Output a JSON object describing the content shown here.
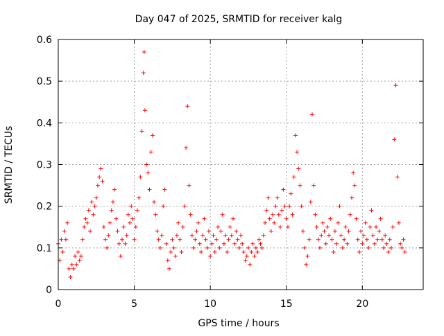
{
  "chart_data": {
    "type": "scatter",
    "title": "Day 047 of 2025, SRMTID for receiver kalg",
    "xlabel": "GPS time / hours",
    "ylabel": "SRMTID / TECUs",
    "xlim": [
      0,
      24
    ],
    "ylim": [
      0,
      0.6
    ],
    "xticks": [
      0,
      5,
      10,
      15,
      20
    ],
    "xtick_labels": [
      "0",
      "5",
      "10",
      "15",
      "20"
    ],
    "yticks": [
      0,
      0.1,
      0.2,
      0.3,
      0.4,
      0.5,
      0.6
    ],
    "ytick_labels": [
      "0",
      "0.1",
      "0.2",
      "0.3",
      "0.4",
      "0.5",
      "0.6"
    ],
    "grid": true,
    "marker": "+",
    "color": "#ff0000",
    "series": [
      {
        "name": "SRMTID",
        "x": [
          0.0,
          0.1,
          0.2,
          0.3,
          0.4,
          0.5,
          0.6,
          0.7,
          0.8,
          0.9,
          1.0,
          1.1,
          1.2,
          1.3,
          1.4,
          1.5,
          1.6,
          1.7,
          1.8,
          1.9,
          2.0,
          2.1,
          2.2,
          2.3,
          2.4,
          2.5,
          2.6,
          2.7,
          2.8,
          2.9,
          3.0,
          3.1,
          3.2,
          3.3,
          3.4,
          3.5,
          3.6,
          3.7,
          3.8,
          3.9,
          4.0,
          4.1,
          4.2,
          4.3,
          4.4,
          4.5,
          4.6,
          4.7,
          4.8,
          4.9,
          5.0,
          5.1,
          5.2,
          5.3,
          5.4,
          5.5,
          5.6,
          5.65,
          5.7,
          5.8,
          5.9,
          6.0,
          6.1,
          6.2,
          6.3,
          6.4,
          6.5,
          6.6,
          6.7,
          6.8,
          6.9,
          7.0,
          7.1,
          7.2,
          7.3,
          7.4,
          7.5,
          7.6,
          7.7,
          7.8,
          7.9,
          8.0,
          8.1,
          8.2,
          8.3,
          8.4,
          8.5,
          8.6,
          8.7,
          8.8,
          8.9,
          9.0,
          9.1,
          9.2,
          9.3,
          9.4,
          9.5,
          9.6,
          9.7,
          9.8,
          9.9,
          10.0,
          10.1,
          10.2,
          10.3,
          10.4,
          10.5,
          10.6,
          10.7,
          10.8,
          10.9,
          11.0,
          11.1,
          11.2,
          11.3,
          11.4,
          11.5,
          11.6,
          11.7,
          11.8,
          11.9,
          12.0,
          12.1,
          12.2,
          12.3,
          12.4,
          12.5,
          12.6,
          12.7,
          12.8,
          12.9,
          13.0,
          13.1,
          13.2,
          13.3,
          13.4,
          13.5,
          13.6,
          13.7,
          13.8,
          13.9,
          14.0,
          14.1,
          14.2,
          14.3,
          14.4,
          14.5,
          14.6,
          14.7,
          14.8,
          14.9,
          15.0,
          15.1,
          15.2,
          15.3,
          15.4,
          15.5,
          15.6,
          15.7,
          15.8,
          15.9,
          16.0,
          16.1,
          16.2,
          16.3,
          16.4,
          16.5,
          16.6,
          16.7,
          16.8,
          16.9,
          17.0,
          17.1,
          17.2,
          17.3,
          17.4,
          17.5,
          17.6,
          17.7,
          17.8,
          17.9,
          18.0,
          18.1,
          18.2,
          18.3,
          18.4,
          18.5,
          18.6,
          18.7,
          18.8,
          18.9,
          19.0,
          19.1,
          19.2,
          19.3,
          19.4,
          19.5,
          19.6,
          19.7,
          19.8,
          19.9,
          20.0,
          20.1,
          20.2,
          20.3,
          20.4,
          20.5,
          20.6,
          20.7,
          20.8,
          20.9,
          21.0,
          21.1,
          21.2,
          21.3,
          21.4,
          21.5,
          21.6,
          21.7,
          21.8,
          21.9,
          22.0,
          22.1,
          22.2,
          22.3,
          22.4,
          22.5,
          22.6,
          22.7,
          22.8
        ],
        "y": [
          0.11,
          0.07,
          0.12,
          0.09,
          0.14,
          0.12,
          0.16,
          0.05,
          0.03,
          0.06,
          0.05,
          0.08,
          0.06,
          0.09,
          0.07,
          0.08,
          0.12,
          0.15,
          0.17,
          0.16,
          0.19,
          0.14,
          0.21,
          0.18,
          0.2,
          0.22,
          0.25,
          0.27,
          0.29,
          0.26,
          0.15,
          0.12,
          0.1,
          0.13,
          0.16,
          0.19,
          0.21,
          0.24,
          0.17,
          0.14,
          0.11,
          0.08,
          0.12,
          0.15,
          0.11,
          0.13,
          0.18,
          0.16,
          0.2,
          0.17,
          0.12,
          0.15,
          0.19,
          0.22,
          0.27,
          0.38,
          0.52,
          0.57,
          0.43,
          0.3,
          0.28,
          0.24,
          0.33,
          0.37,
          0.21,
          0.18,
          0.14,
          0.12,
          0.1,
          0.13,
          0.2,
          0.24,
          0.11,
          0.07,
          0.05,
          0.09,
          0.12,
          0.1,
          0.08,
          0.13,
          0.16,
          0.12,
          0.09,
          0.15,
          0.2,
          0.34,
          0.44,
          0.25,
          0.18,
          0.13,
          0.1,
          0.12,
          0.14,
          0.16,
          0.11,
          0.09,
          0.13,
          0.17,
          0.12,
          0.1,
          0.14,
          0.08,
          0.11,
          0.13,
          0.09,
          0.12,
          0.15,
          0.1,
          0.14,
          0.18,
          0.11,
          0.13,
          0.09,
          0.12,
          0.15,
          0.13,
          0.17,
          0.11,
          0.14,
          0.12,
          0.1,
          0.13,
          0.11,
          0.09,
          0.07,
          0.08,
          0.1,
          0.06,
          0.09,
          0.11,
          0.08,
          0.1,
          0.09,
          0.12,
          0.11,
          0.1,
          0.13,
          0.16,
          0.19,
          0.22,
          0.17,
          0.14,
          0.18,
          0.16,
          0.2,
          0.22,
          0.18,
          0.15,
          0.19,
          0.24,
          0.2,
          0.17,
          0.15,
          0.2,
          0.23,
          0.18,
          0.27,
          0.37,
          0.33,
          0.29,
          0.25,
          0.2,
          0.14,
          0.1,
          0.06,
          0.08,
          0.12,
          0.21,
          0.42,
          0.25,
          0.18,
          0.15,
          0.12,
          0.1,
          0.13,
          0.16,
          0.14,
          0.11,
          0.15,
          0.13,
          0.17,
          0.12,
          0.09,
          0.14,
          0.11,
          0.16,
          0.2,
          0.13,
          0.1,
          0.12,
          0.15,
          0.11,
          0.14,
          0.18,
          0.22,
          0.28,
          0.25,
          0.17,
          0.12,
          0.09,
          0.14,
          0.11,
          0.13,
          0.16,
          0.12,
          0.1,
          0.15,
          0.19,
          0.13,
          0.11,
          0.15,
          0.12,
          0.14,
          0.17,
          0.12,
          0.1,
          0.13,
          0.11,
          0.09,
          0.12,
          0.1,
          0.15,
          0.36,
          0.49,
          0.27,
          0.16,
          0.11,
          0.1,
          0.12,
          0.09
        ]
      }
    ]
  }
}
